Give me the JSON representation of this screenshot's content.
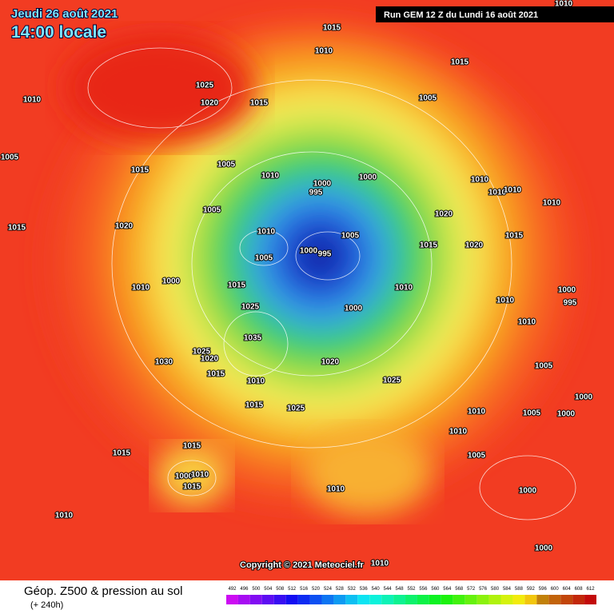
{
  "header": {
    "date": "Jeudi 26 août 2021",
    "time": "14:00 locale",
    "run": "Run GEM 12 Z du Lundi 16 août 2021"
  },
  "copyright": "Copyright © 2021 Meteociel.fr",
  "legend": {
    "title": "Géop. Z500 & pression au sol",
    "subtitle": "(+ 240h)",
    "scale": [
      "492",
      "496",
      "500",
      "504",
      "508",
      "512",
      "516",
      "520",
      "524",
      "528",
      "532",
      "536",
      "540",
      "544",
      "548",
      "552",
      "556",
      "560",
      "564",
      "568",
      "572",
      "576",
      "580",
      "584",
      "588",
      "592",
      "596",
      "600",
      "604",
      "608",
      "612"
    ]
  },
  "pressure_labels": [
    "1010",
    "1015",
    "1010",
    "1015",
    "1025",
    "1010",
    "1020",
    "1015",
    "1005",
    "1005",
    "1015",
    "1005",
    "1010",
    "1000",
    "995",
    "1000",
    "1010",
    "1010",
    "1010",
    "1010",
    "1005",
    "1020",
    "1015",
    "1020",
    "1010",
    "1005",
    "1015",
    "1020",
    "1015",
    "1005",
    "1000",
    "995",
    "1000",
    "1010",
    "1015",
    "1010",
    "1000",
    "1025",
    "1010",
    "995",
    "1000",
    "1010",
    "1035",
    "1025",
    "1020",
    "1030",
    "1020",
    "1015",
    "1010",
    "1025",
    "1005",
    "1015",
    "1025",
    "1000",
    "1010",
    "1005",
    "1000",
    "1010",
    "1005",
    "1015",
    "1015",
    "1000",
    "1010",
    "1015",
    "1010",
    "1000",
    "1010",
    "1000",
    "1010"
  ]
}
